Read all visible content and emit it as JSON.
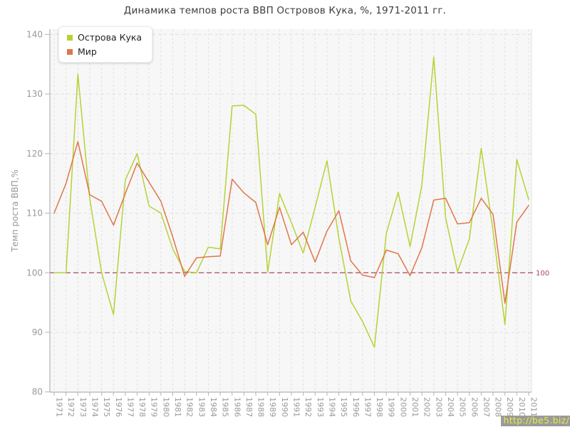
{
  "title": "Динамика темпов роста ВВП Островов Кука, %, 1971-2011 гг.",
  "watermark": "http://be5.biz/",
  "chart_data": {
    "type": "line",
    "x": [
      "1971",
      "1972",
      "1973",
      "1974",
      "1975",
      "1976",
      "1977",
      "1978",
      "1979",
      "1980",
      "1981",
      "1982",
      "1983",
      "1984",
      "1985",
      "1986",
      "1987",
      "1988",
      "1989",
      "1990",
      "1991",
      "1992",
      "1993",
      "1994",
      "1995",
      "1996",
      "1997",
      "1998",
      "1999",
      "2000",
      "2001",
      "2002",
      "2003",
      "2004",
      "2005",
      "2006",
      "2007",
      "2008",
      "2009",
      "2010",
      "2011"
    ],
    "series": [
      {
        "name": "Острова Кука",
        "color": "#b5d333",
        "values": [
          100,
          100,
          133.3,
          112.5,
          100,
          93,
          115.6,
          120,
          111.2,
          110,
          104,
          100.2,
          100,
          104.3,
          104,
          128,
          128.1,
          126.6,
          100.1,
          113.3,
          108.4,
          103.3,
          111,
          118.8,
          105.8,
          95.3,
          91.8,
          87.5,
          106.6,
          113.5,
          104.4,
          114.7,
          136.2,
          109.2,
          100.2,
          105.7,
          120.9,
          107,
          91.3,
          119,
          112.3
        ]
      },
      {
        "name": "Мир",
        "color": "#e0764a",
        "values": [
          110,
          115,
          122,
          113.1,
          112,
          108,
          113.3,
          118.4,
          115.2,
          112,
          106,
          99.4,
          102.5,
          102.7,
          102.8,
          115.7,
          113.4,
          111.8,
          104.7,
          111,
          104.7,
          106.8,
          101.8,
          107,
          110.4,
          102,
          99.6,
          99.2,
          103.8,
          103.2,
          99.5,
          104.2,
          112.2,
          112.5,
          108.2,
          108.4,
          112.5,
          109.8,
          94.9,
          108.5,
          111.3
        ]
      }
    ],
    "ylabel": "Темп роста ВВП,%",
    "ylim": [
      80,
      140
    ],
    "yticks": [
      80,
      90,
      100,
      110,
      120,
      130,
      140
    ],
    "baseline": {
      "value": 100,
      "label": "100",
      "color": "#a84a5e"
    },
    "grid": "dashed",
    "legend_position": "top-left",
    "colors": {
      "plot_background": "#f7f7f7",
      "gridline": "#e0e0e0",
      "axis": "#b3b3b3",
      "tick_text": "#999999"
    }
  }
}
